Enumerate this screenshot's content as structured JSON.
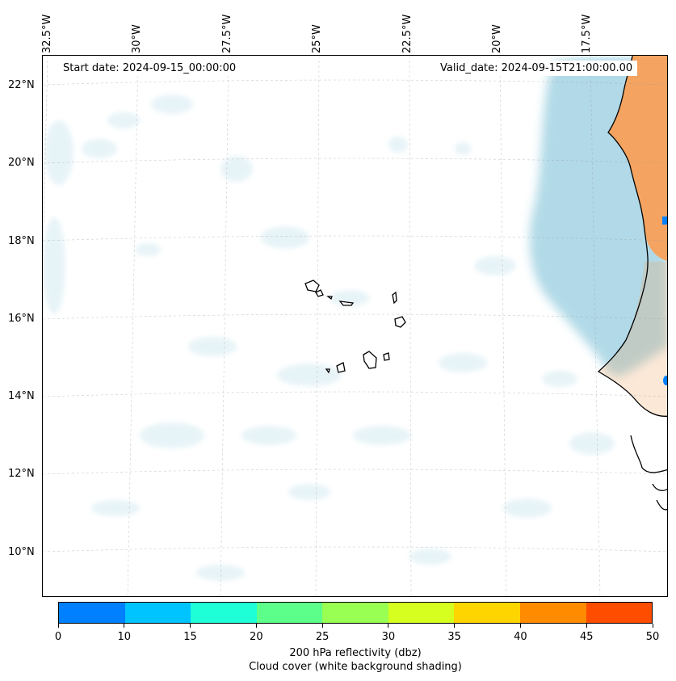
{
  "map": {
    "start_date": "Start date: 2024-09-15_00:00:00",
    "valid_date": "Valid_date: 2024-09-15T21:00:00.00",
    "lon_labels": [
      "32.5°W",
      "30°W",
      "27.5°W",
      "25°W",
      "22.5°W",
      "20°W",
      "17.5°W"
    ],
    "lat_labels": [
      "22°N",
      "20°N",
      "18°N",
      "16°N",
      "14°N",
      "12°N",
      "10°N"
    ],
    "land_color": "#f4a460",
    "cloud_color": "#add8e6",
    "coast_color": "#000000",
    "grid": true
  },
  "colorbar": {
    "title": "200 hPa reflectivity (dbz)",
    "subtitle": "Cloud cover (white background shading)",
    "ticks": [
      "0",
      "10",
      "15",
      "20",
      "25",
      "30",
      "35",
      "40",
      "45",
      "50"
    ],
    "colors": [
      "#0080ff",
      "#00c4ff",
      "#1fffd7",
      "#5cff8a",
      "#99ff52",
      "#d6ff1f",
      "#ffd500",
      "#ff8c00",
      "#ff4d00"
    ]
  }
}
